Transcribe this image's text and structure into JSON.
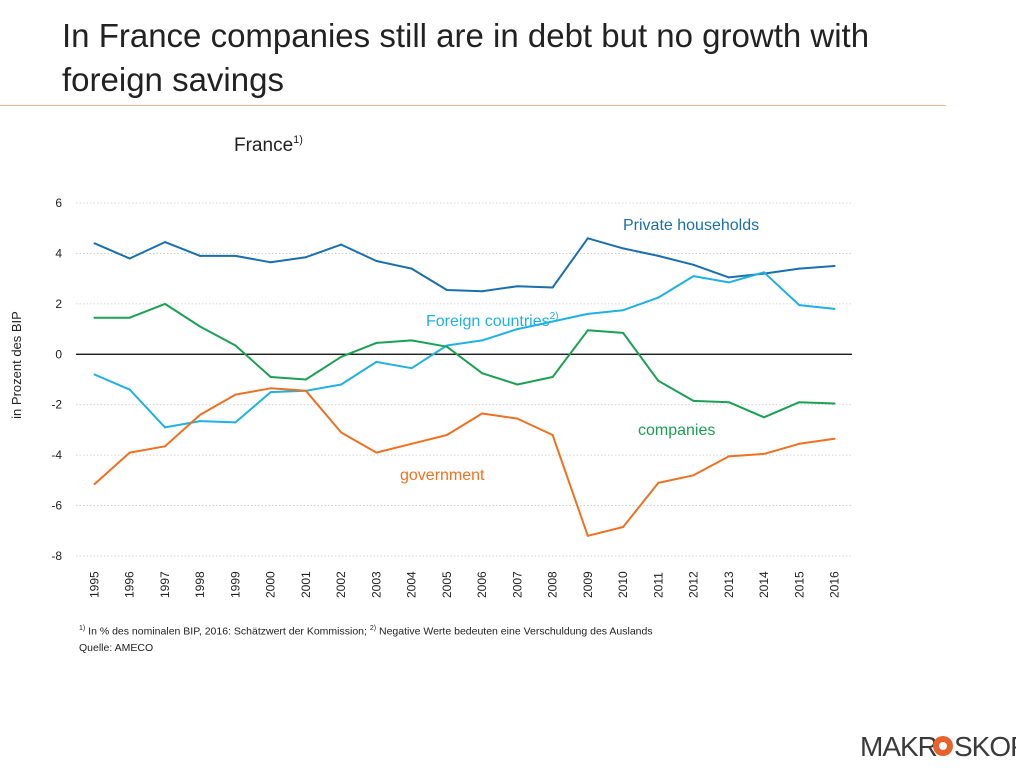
{
  "title": "In France companies still are in debt but no growth with foreign savings",
  "footnote1_mark": "1)",
  "footnote1_text": " In % des nominalen BIP, 2016: Schätzwert der Kommission; ",
  "footnote2_mark": "2)",
  "footnote2_text": " Negative Werte bedeuten eine Verschuldung des Auslands",
  "source": "Quelle: AMECO",
  "logo_text": "MAKROSKOP",
  "colors": {
    "title_rule": "#f2b48a",
    "logo_accent": "#e8632b"
  },
  "chart_data": {
    "type": "line",
    "title": "France",
    "title_sup": "1)",
    "xlabel": "",
    "ylabel": "in Prozent des BIP",
    "ylim": [
      -8,
      6
    ],
    "yticks": [
      6,
      4,
      2,
      0,
      -2,
      -4,
      -6,
      -8
    ],
    "x": [
      "1995",
      "1996",
      "1997",
      "1998",
      "1999",
      "2000",
      "2001",
      "2002",
      "2003",
      "2004",
      "2005",
      "2006",
      "2007",
      "2008",
      "2009",
      "2010",
      "2011",
      "2012",
      "2013",
      "2014",
      "2015",
      "2016"
    ],
    "grid": true,
    "series": [
      {
        "name": "Private households",
        "color": "#1a6faf",
        "values": [
          4.4,
          3.8,
          4.45,
          3.9,
          3.9,
          3.65,
          3.85,
          4.35,
          3.7,
          3.4,
          2.55,
          2.5,
          2.7,
          2.65,
          4.6,
          4.2,
          3.9,
          3.55,
          3.05,
          3.2,
          3.4,
          3.5
        ]
      },
      {
        "name": "Foreign countries",
        "name_sup": "2)",
        "color": "#1fb1e3",
        "values": [
          -0.8,
          -1.4,
          -2.9,
          -2.65,
          -2.7,
          -1.5,
          -1.45,
          -1.2,
          -0.3,
          -0.55,
          0.35,
          0.55,
          1.0,
          1.3,
          1.6,
          1.75,
          2.25,
          3.1,
          2.85,
          3.25,
          1.95,
          1.8
        ]
      },
      {
        "name": "companies",
        "color": "#1aa153",
        "values": [
          1.45,
          1.45,
          2.0,
          1.1,
          0.35,
          -0.9,
          -1.0,
          -0.1,
          0.45,
          0.55,
          0.3,
          -0.75,
          -1.2,
          -0.9,
          0.95,
          0.85,
          -1.05,
          -1.85,
          -1.9,
          -2.5,
          -1.9,
          -1.95
        ]
      },
      {
        "name": "government",
        "color": "#ee7121",
        "values": [
          -5.15,
          -3.9,
          -3.65,
          -2.4,
          -1.6,
          -1.35,
          -1.45,
          -3.1,
          -3.9,
          -3.55,
          -3.2,
          -2.35,
          -2.55,
          -3.2,
          -7.2,
          -6.85,
          -5.1,
          -4.8,
          -4.05,
          -3.95,
          -3.55,
          -3.35
        ]
      }
    ]
  }
}
